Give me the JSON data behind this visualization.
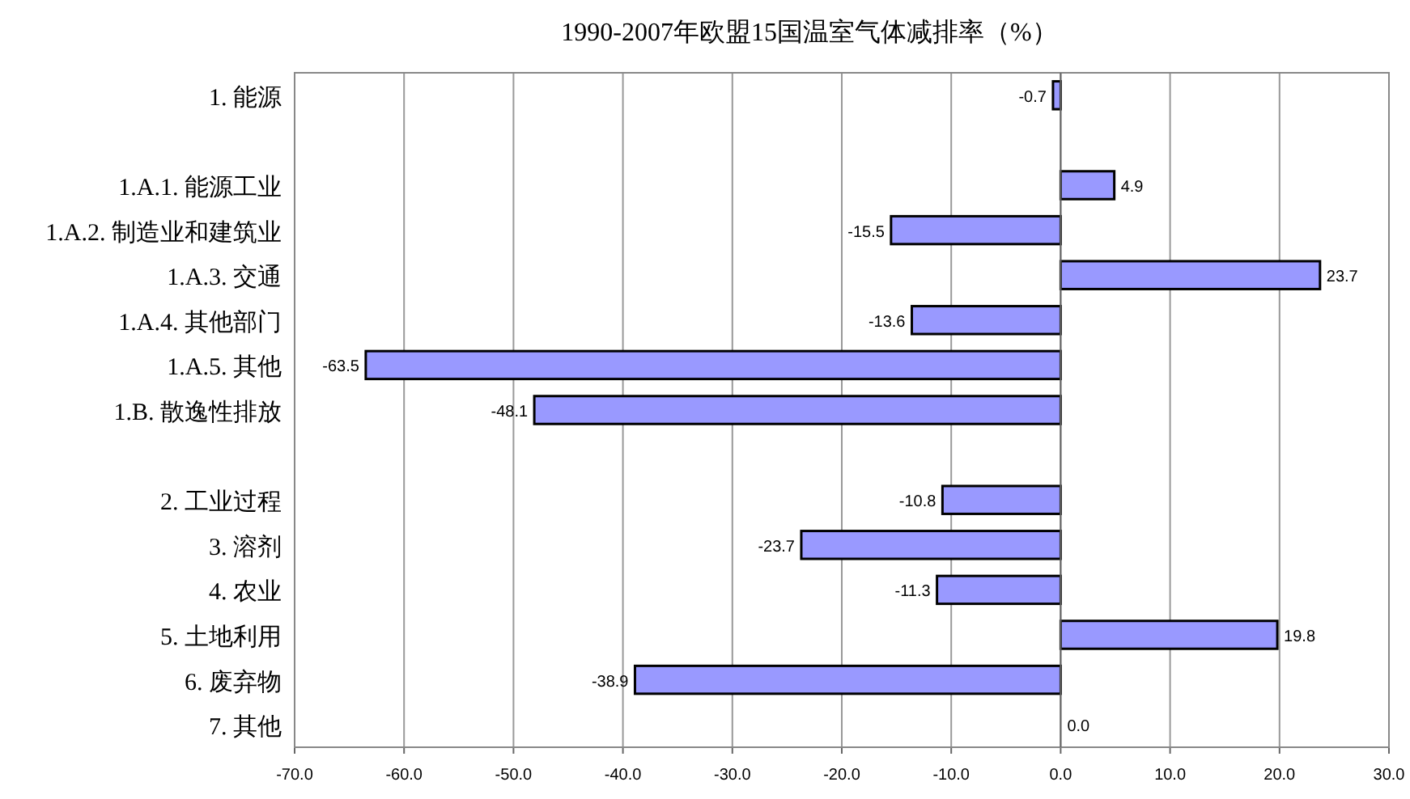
{
  "chart_data": {
    "type": "bar",
    "orientation": "horizontal",
    "title": "1990-2007年欧盟15国温室气体减排率（%）",
    "categories": [
      "1. 能源",
      null,
      "1.A.1. 能源工业",
      "1.A.2. 制造业和建筑业",
      "1.A.3. 交通",
      "1.A.4. 其他部门",
      "1.A.5. 其他",
      "1.B. 散逸性排放",
      null,
      "2. 工业过程",
      "3. 溶剂",
      "4. 农业",
      "5. 土地利用",
      "6. 废弃物",
      "7. 其他"
    ],
    "values": [
      -0.7,
      null,
      4.9,
      -15.5,
      23.7,
      -13.6,
      -63.5,
      -48.1,
      null,
      -10.8,
      -23.7,
      -11.3,
      19.8,
      -38.9,
      0.0
    ],
    "value_labels": [
      "-0.7",
      null,
      "4.9",
      "-15.5",
      "23.7",
      "-13.6",
      "-63.5",
      "-48.1",
      null,
      "-10.8",
      "-23.7",
      "-11.3",
      "19.8",
      "-38.9",
      "0.0"
    ],
    "color": "#9999ff",
    "xlim": [
      -70,
      30
    ],
    "xticks": [
      {
        "value": -70,
        "label": "-70.0"
      },
      {
        "value": -60,
        "label": "-60.0"
      },
      {
        "value": -50,
        "label": "-50.0"
      },
      {
        "value": -40,
        "label": "-40.0"
      },
      {
        "value": -30,
        "label": "-30.0"
      },
      {
        "value": -20,
        "label": "-20.0"
      },
      {
        "value": -10,
        "label": "-10.0"
      },
      {
        "value": 0,
        "label": "0.0"
      },
      {
        "value": 10,
        "label": "10.0"
      },
      {
        "value": 20,
        "label": "20.0"
      },
      {
        "value": 30,
        "label": "30.0"
      }
    ],
    "grid": "x"
  }
}
